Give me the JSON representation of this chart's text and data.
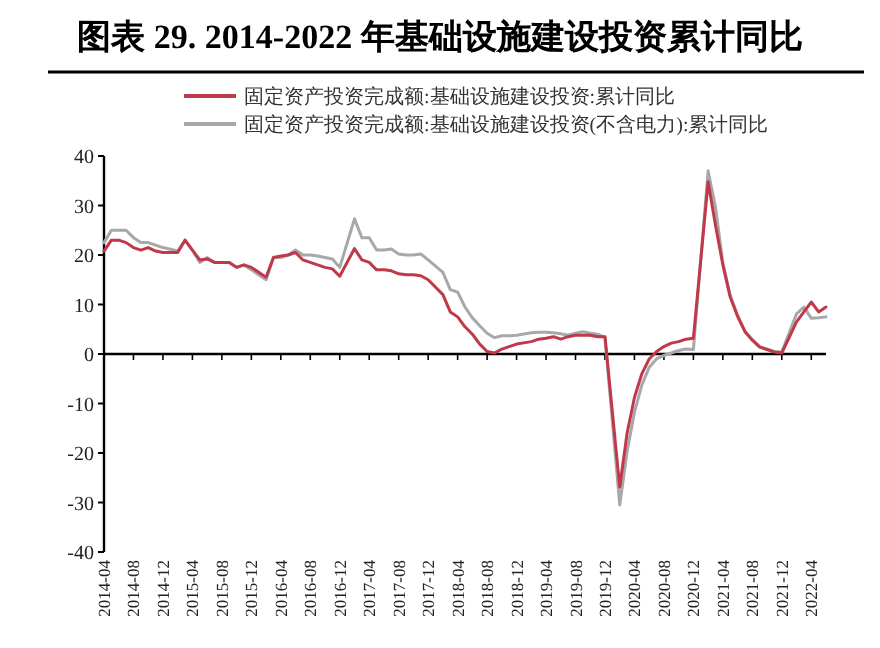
{
  "chart_data": {
    "type": "line",
    "title": "图表 29. 2014-2022 年基础设施建设投资累计同比",
    "x": [
      "2014-04",
      "2014-05",
      "2014-06",
      "2014-07",
      "2014-08",
      "2014-09",
      "2014-10",
      "2014-11",
      "2014-12",
      "2015-02",
      "2015-03",
      "2015-04",
      "2015-05",
      "2015-06",
      "2015-07",
      "2015-08",
      "2015-09",
      "2015-10",
      "2015-11",
      "2015-12",
      "2016-02",
      "2016-03",
      "2016-04",
      "2016-05",
      "2016-06",
      "2016-07",
      "2016-08",
      "2016-09",
      "2016-10",
      "2016-11",
      "2016-12",
      "2017-02",
      "2017-03",
      "2017-04",
      "2017-05",
      "2017-06",
      "2017-07",
      "2017-08",
      "2017-09",
      "2017-10",
      "2017-11",
      "2017-12",
      "2018-02",
      "2018-03",
      "2018-04",
      "2018-05",
      "2018-06",
      "2018-07",
      "2018-08",
      "2018-09",
      "2018-10",
      "2018-11",
      "2018-12",
      "2019-02",
      "2019-03",
      "2019-04",
      "2019-05",
      "2019-06",
      "2019-07",
      "2019-08",
      "2019-09",
      "2019-10",
      "2019-11",
      "2019-12",
      "2020-02",
      "2020-03",
      "2020-04",
      "2020-05",
      "2020-06",
      "2020-07",
      "2020-08",
      "2020-09",
      "2020-10",
      "2020-11",
      "2020-12",
      "2021-02",
      "2021-03",
      "2021-04",
      "2021-05",
      "2021-06",
      "2021-07",
      "2021-08",
      "2021-09",
      "2021-10",
      "2021-11",
      "2021-12",
      "2022-02",
      "2022-03",
      "2022-04",
      "2022-05",
      "2022-06"
    ],
    "series": [
      {
        "name": "固定资产投资完成额:基础设施建设投资:累计同比",
        "color": "#c0394b",
        "values": [
          20.8,
          23,
          23,
          22.5,
          21.5,
          21,
          21.5,
          20.8,
          20.5,
          20.5,
          23,
          21,
          19,
          19.2,
          18.5,
          18.5,
          18.5,
          17.5,
          18,
          17.5,
          15.5,
          19.5,
          19.8,
          20,
          20.5,
          19,
          18.5,
          18,
          17.5,
          17.2,
          15.7,
          21.3,
          19,
          18.5,
          17,
          17,
          16.8,
          16.2,
          16,
          16,
          15.8,
          15,
          12,
          8.5,
          7.5,
          5.5,
          4,
          2,
          0.5,
          0.2,
          1,
          1.5,
          2,
          2.5,
          3,
          3.2,
          3.5,
          3,
          3.5,
          3.8,
          3.8,
          3.8,
          3.5,
          3.5,
          -26.9,
          -16,
          -8.8,
          -4,
          -1,
          0.5,
          1.5,
          2.2,
          2.5,
          3,
          3.2,
          34.8,
          26,
          18,
          11.5,
          7.6,
          4.5,
          2.8,
          1.4,
          0.9,
          0.4,
          0.2,
          6.5,
          8.5,
          10.5,
          8.5,
          9.5
        ]
      },
      {
        "name": "固定资产投资完成额:基础设施建设投资(不含电力):累计同比",
        "color": "#a8a8a8",
        "values": [
          22.5,
          25,
          25,
          25,
          23.5,
          22.5,
          22.5,
          22,
          21.5,
          20.8,
          23,
          21,
          18.5,
          19.5,
          18.5,
          18.5,
          18.5,
          17.5,
          18,
          17,
          15,
          19.5,
          19.5,
          20,
          21,
          20,
          20,
          19.8,
          19.5,
          19.2,
          17.5,
          27.3,
          23.5,
          23.5,
          21,
          21,
          21.2,
          20.2,
          20,
          20,
          20.2,
          19,
          16.5,
          13,
          12.5,
          9.5,
          7.3,
          5.7,
          4.2,
          3.3,
          3.7,
          3.7,
          3.8,
          4.3,
          4.4,
          4.4,
          4.3,
          4.1,
          3.8,
          4.2,
          4.5,
          4.2,
          4,
          3.3,
          -30.5,
          -19.7,
          -11.8,
          -6.3,
          -2.7,
          -1,
          -0.3,
          0.2,
          0.7,
          1,
          0.9,
          37,
          29.7,
          18.4,
          11.8,
          7.8,
          4.6,
          2.9,
          1.5,
          1,
          0.5,
          0.4,
          8.1,
          9.5,
          7.2,
          7.3,
          7.5
        ]
      }
    ],
    "xlim": [
      "2014-04",
      "2022-06"
    ],
    "xticks": [
      "2014-04",
      "2014-08",
      "2014-12",
      "2015-04",
      "2015-08",
      "2015-12",
      "2016-04",
      "2016-08",
      "2016-12",
      "2017-04",
      "2017-08",
      "2017-12",
      "2018-04",
      "2018-08",
      "2018-12",
      "2019-04",
      "2019-08",
      "2019-12",
      "2020-04",
      "2020-08",
      "2020-12",
      "2021-04",
      "2021-08",
      "2021-12",
      "2022-04"
    ],
    "ylim": [
      -40,
      40
    ],
    "yticks": [
      -40,
      -30,
      -20,
      -10,
      0,
      10,
      20,
      30,
      40
    ],
    "legend": "top",
    "marker": "none",
    "line_style": "solid"
  }
}
